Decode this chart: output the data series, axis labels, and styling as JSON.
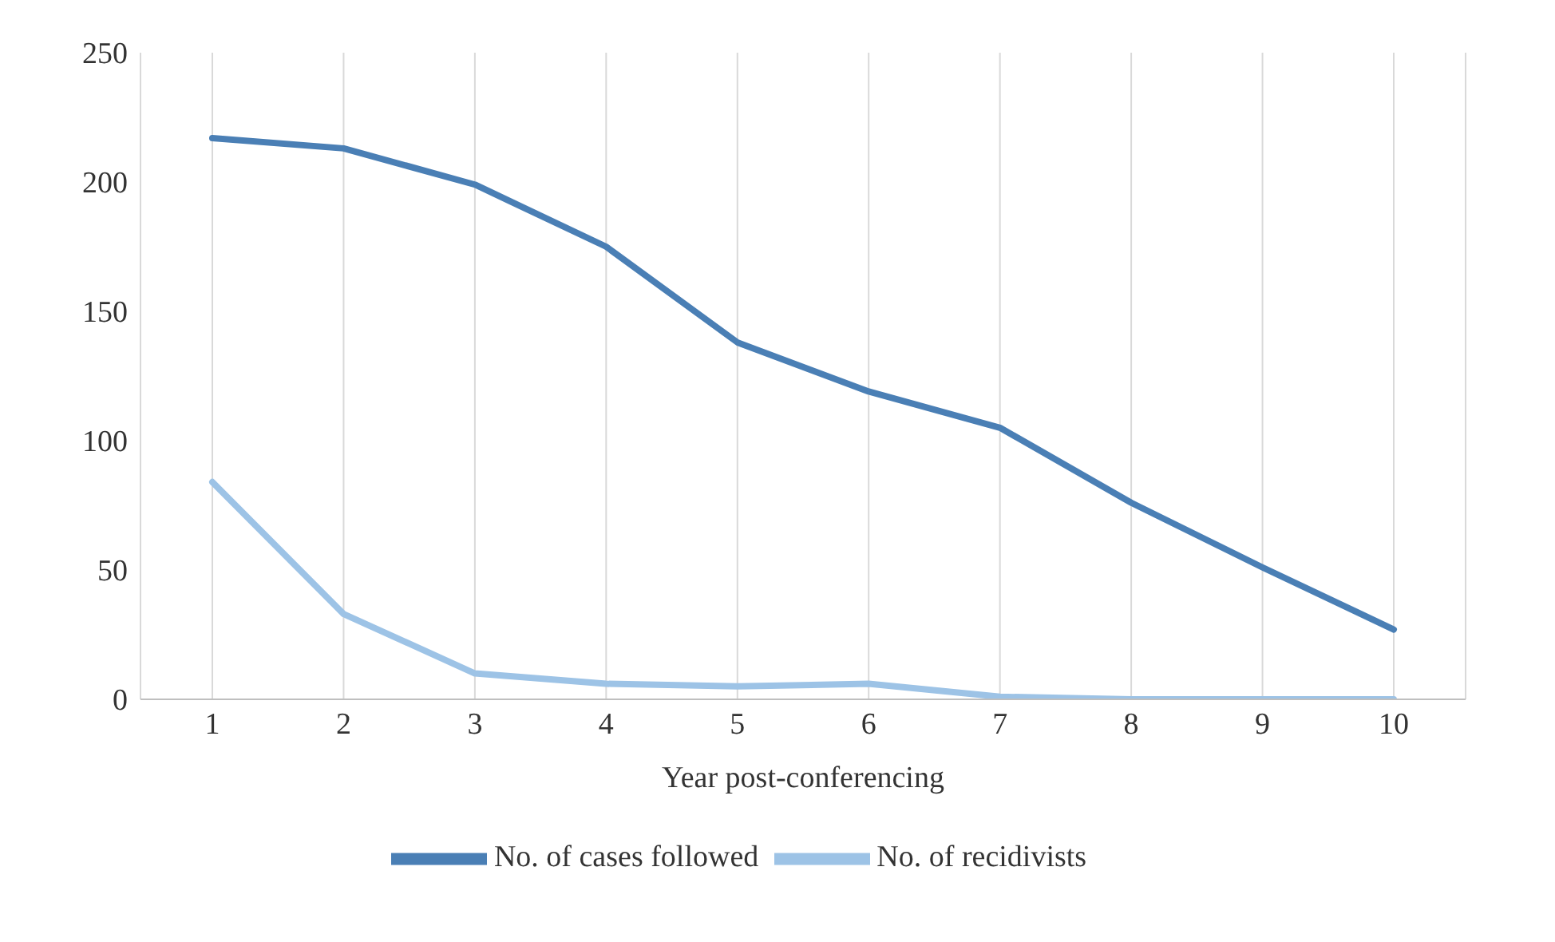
{
  "chart_data": {
    "type": "line",
    "xlabel": "Year post-conferencing",
    "categories": [
      "1",
      "2",
      "3",
      "4",
      "5",
      "6",
      "7",
      "8",
      "9",
      "10"
    ],
    "series": [
      {
        "name": "No. of cases followed",
        "color": "#4a7fb5",
        "values": [
          217,
          213,
          199,
          175,
          138,
          119,
          105,
          76,
          51,
          27
        ]
      },
      {
        "name": "No. of recidivists",
        "color": "#9dc3e6",
        "values": [
          84,
          33,
          10,
          6,
          5,
          6,
          1,
          0,
          0,
          0
        ]
      }
    ],
    "ylim": [
      0,
      250
    ],
    "yticks": [
      0,
      50,
      100,
      150,
      200,
      250
    ],
    "grid": "x",
    "legend": "bottom",
    "marker": "none",
    "line_style": "solid"
  }
}
